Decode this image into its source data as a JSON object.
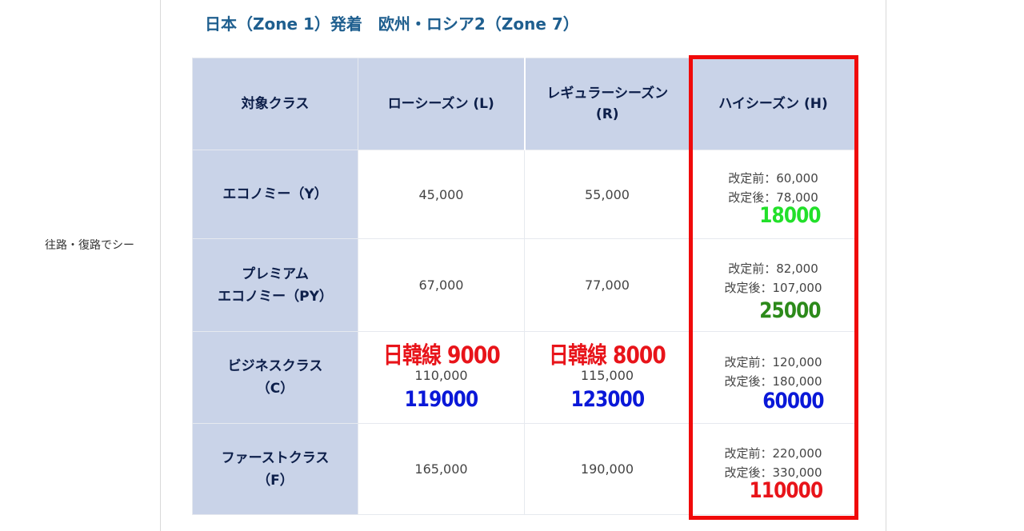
{
  "side_text": "往路・復路でシー",
  "zone_title": "日本（Zone 1）発着　欧州・ロシア2（Zone 7）",
  "headers": {
    "class": "対象クラス",
    "low": "ローシーズン (L)",
    "regular_line1": "レギュラーシーズン",
    "regular_line2": "(R)",
    "high": "ハイシーズン (H)"
  },
  "rows": [
    {
      "label_line1": "エコノミー（Y）",
      "label_line2": "",
      "low": "45,000",
      "regular": "55,000",
      "high_before": "改定前：60,000",
      "high_after": "改定後：78,000",
      "high_note": "18000"
    },
    {
      "label_line1": "プレミアム",
      "label_line2": "エコノミー（PY）",
      "low": "67,000",
      "regular": "77,000",
      "high_before": "改定前：82,000",
      "high_after": "改定後：107,000",
      "high_note": "25000"
    },
    {
      "label_line1": "ビジネスクラス",
      "label_line2": "（C）",
      "low_note_top": "日韓線 9000",
      "low": "110,000",
      "low_note_bottom": "119000",
      "regular_note_top": "日韓線 8000",
      "regular": "115,000",
      "regular_note_bottom": "123000",
      "high_before": "改定前：120,000",
      "high_after": "改定後：180,000",
      "high_note": "60000"
    },
    {
      "label_line1": "ファーストクラス",
      "label_line2": "（F）",
      "low": "165,000",
      "regular": "190,000",
      "high_before": "改定前：220,000",
      "high_after": "改定後：330,000",
      "high_note": "110000"
    }
  ],
  "colors": {
    "header_bg": "#c9d3e8",
    "title_blue": "#1f5f8f",
    "highlight_box": "#f00a0a",
    "note_green_bright": "#22e02a",
    "note_green_dark": "#2c8a1a",
    "note_blue": "#0a18d8",
    "note_red": "#e8141a"
  }
}
